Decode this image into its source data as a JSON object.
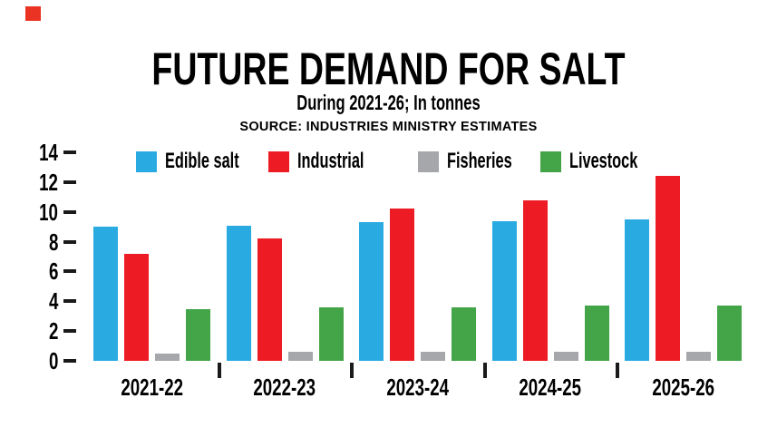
{
  "branding": {
    "mark_color": "#ea3323"
  },
  "chart_data": {
    "type": "bar",
    "title": "FUTURE DEMAND FOR SALT",
    "subtitle": "During 2021-26; In tonnes",
    "source_note": "SOURCE: INDUSTRIES MINISTRY ESTIMATES",
    "categories": [
      "2021-22",
      "2022-23",
      "2023-24",
      "2024-25",
      "2025-26"
    ],
    "series": [
      {
        "name": "Edible salt",
        "color": "#29abe2",
        "values": [
          9.0,
          9.1,
          9.3,
          9.4,
          9.5
        ]
      },
      {
        "name": "Industrial",
        "color": "#ed1c24",
        "values": [
          7.2,
          8.2,
          10.2,
          10.8,
          12.4
        ]
      },
      {
        "name": "Fisheries",
        "color": "#a5a7aa",
        "values": [
          0.5,
          0.6,
          0.6,
          0.6,
          0.6
        ]
      },
      {
        "name": "Livestock",
        "color": "#43a547",
        "values": [
          3.5,
          3.6,
          3.6,
          3.7,
          3.7
        ]
      }
    ],
    "ylim": [
      0,
      14
    ],
    "yticks": [
      0,
      2,
      4,
      6,
      8,
      10,
      12,
      14
    ],
    "xlabel": "",
    "ylabel": "",
    "legend_position": "top",
    "grid": false,
    "axis_color": "#1a1a1a"
  }
}
